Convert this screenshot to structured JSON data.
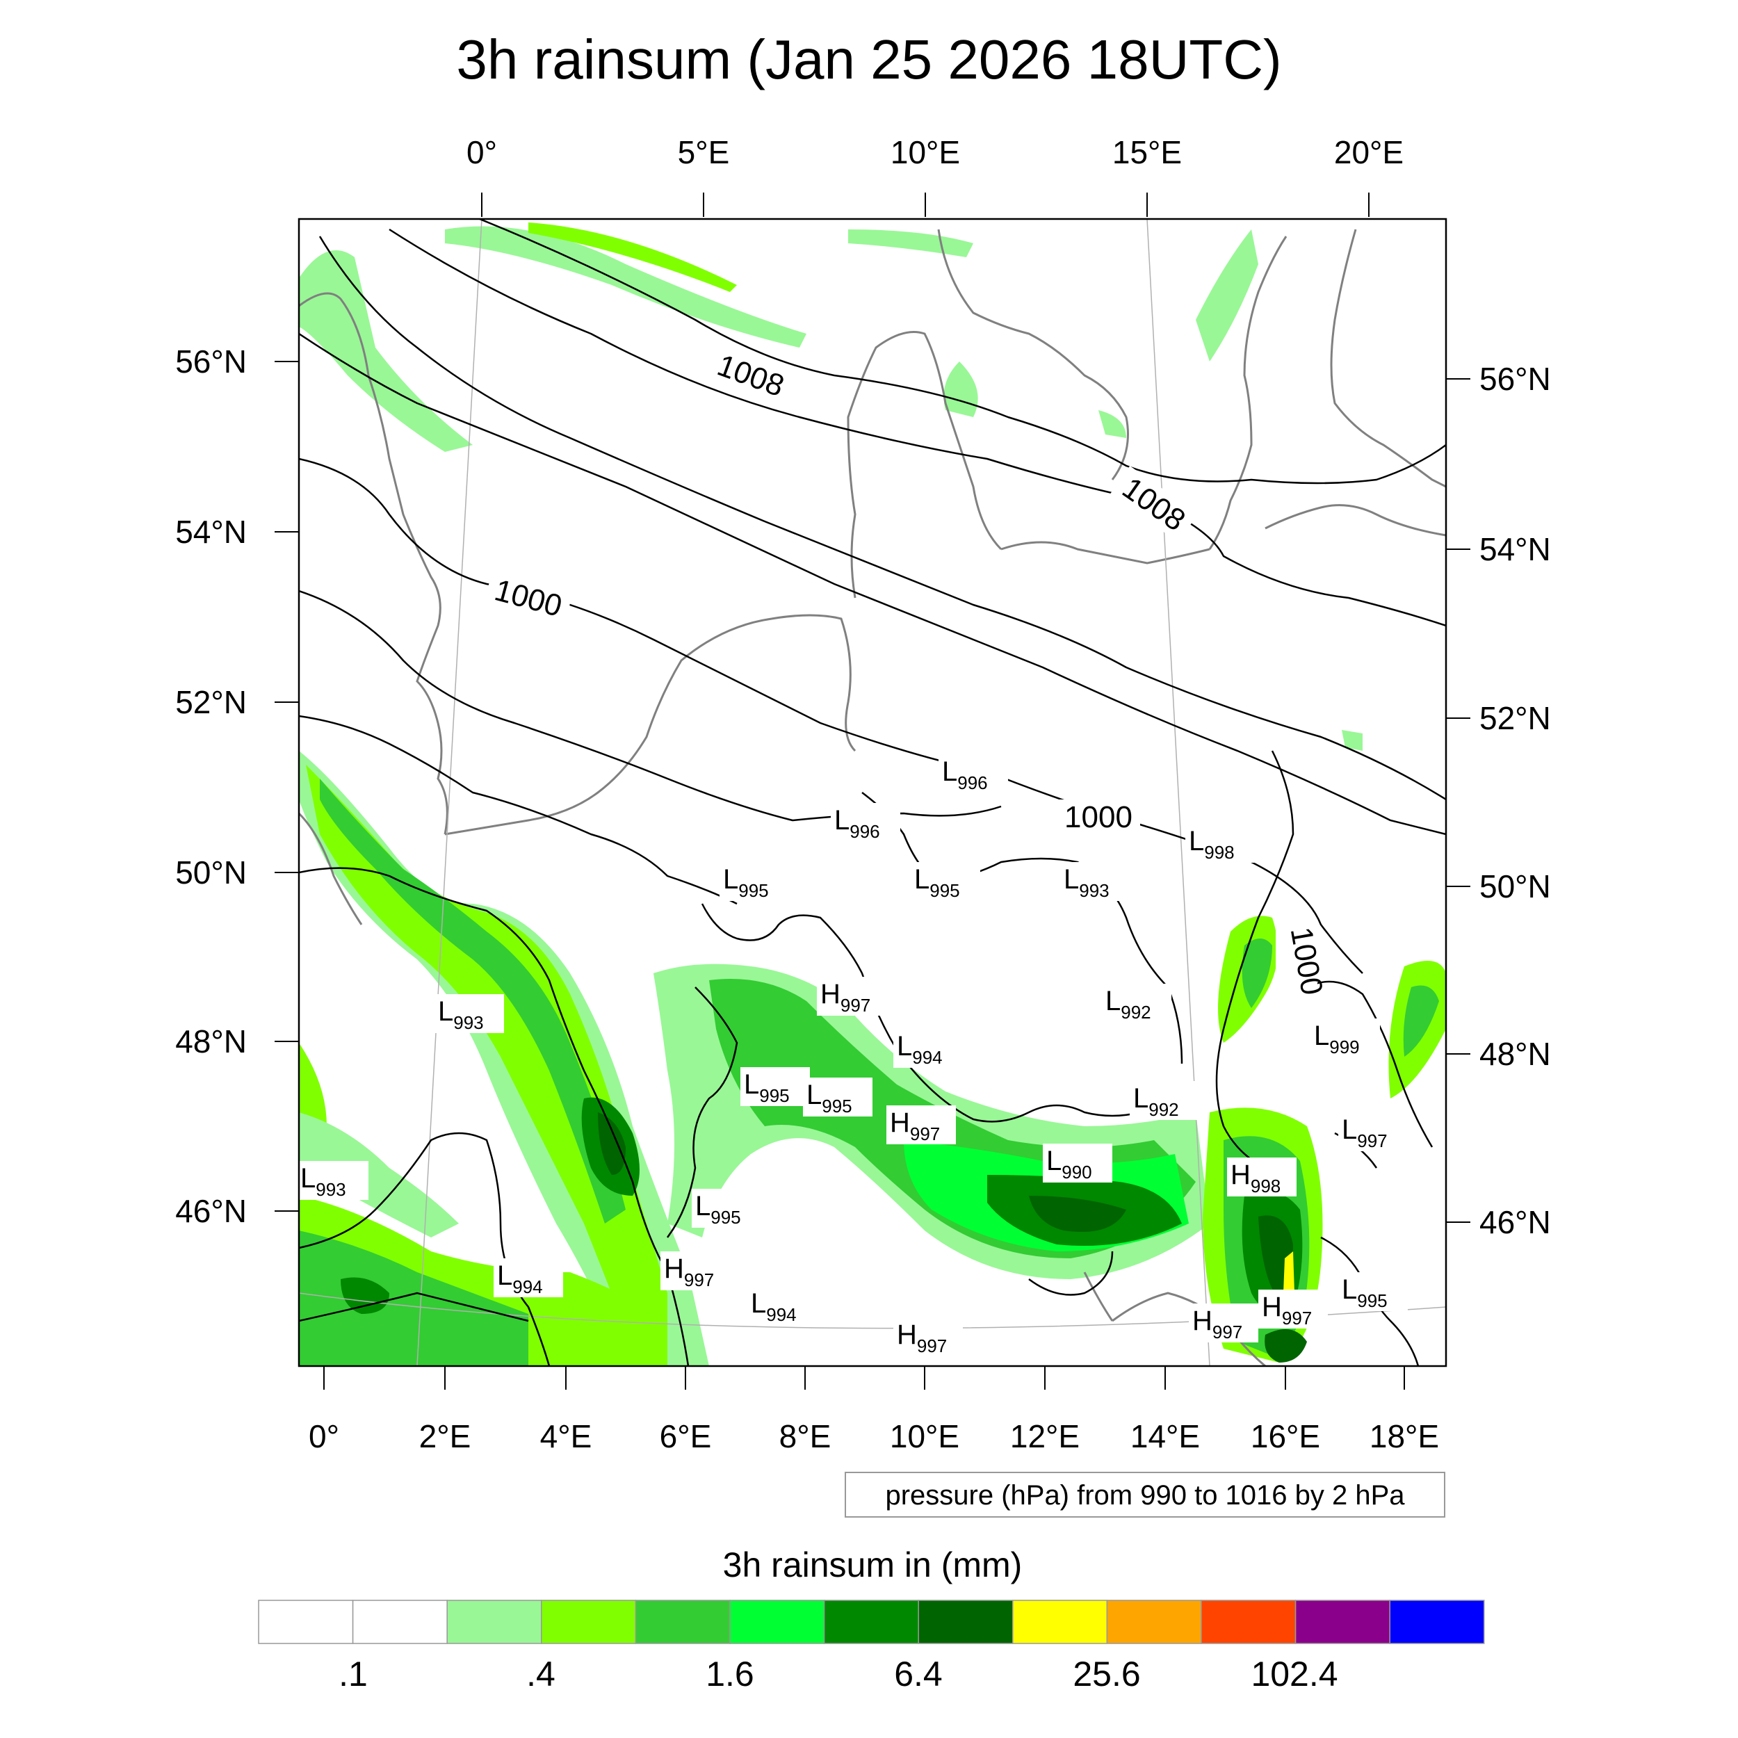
{
  "title": "3h rainsum (Jan 25 2026 18UTC)",
  "top_lon_labels": [
    "0°",
    "5°E",
    "10°E",
    "15°E",
    "20°E"
  ],
  "left_lat_labels": [
    "56°N",
    "54°N",
    "52°N",
    "50°N",
    "48°N",
    "46°N"
  ],
  "right_lat_labels": [
    "56°N",
    "54°N",
    "52°N",
    "50°N",
    "48°N",
    "46°N"
  ],
  "bottom_lon_labels": [
    "0°",
    "2°E",
    "4°E",
    "6°E",
    "8°E",
    "10°E",
    "12°E",
    "14°E",
    "16°E",
    "18°E"
  ],
  "contour_info": "pressure (hPa) from 990 to 1016 by 2 hPa",
  "contour_labels": [
    "1008",
    "1008",
    "1000",
    "1000",
    "1000"
  ],
  "pressure_centers": [
    {
      "type": "L",
      "value": "996"
    },
    {
      "type": "L",
      "value": "996"
    },
    {
      "type": "L",
      "value": "998"
    },
    {
      "type": "L",
      "value": "995"
    },
    {
      "type": "L",
      "value": "995"
    },
    {
      "type": "L",
      "value": "993"
    },
    {
      "type": "H",
      "value": "997"
    },
    {
      "type": "L",
      "value": "992"
    },
    {
      "type": "L",
      "value": "993"
    },
    {
      "type": "L",
      "value": "994"
    },
    {
      "type": "L",
      "value": "999"
    },
    {
      "type": "L",
      "value": "995"
    },
    {
      "type": "L",
      "value": "995"
    },
    {
      "type": "L",
      "value": "992"
    },
    {
      "type": "H",
      "value": "997"
    },
    {
      "type": "L",
      "value": "997"
    },
    {
      "type": "L",
      "value": "990"
    },
    {
      "type": "L",
      "value": "993"
    },
    {
      "type": "H",
      "value": "998"
    },
    {
      "type": "L",
      "value": "995"
    },
    {
      "type": "L",
      "value": "994"
    },
    {
      "type": "H",
      "value": "997"
    },
    {
      "type": "L",
      "value": "994"
    },
    {
      "type": "L",
      "value": "995"
    },
    {
      "type": "H",
      "value": "997"
    },
    {
      "type": "H",
      "value": "997"
    },
    {
      "type": "H",
      "value": "997"
    }
  ],
  "colorbar": {
    "title": "3h rainsum in (mm)",
    "labels": [
      ".1",
      ".4",
      "1.6",
      "6.4",
      "25.6",
      "102.4"
    ],
    "colors": [
      "#ffffff",
      "#ffffff",
      "#99f796",
      "#80ff00",
      "#33cc33",
      "#00ff33",
      "#008800",
      "#006400",
      "#ffff00",
      "#ffa500",
      "#ff4400",
      "#8b008b",
      "#0000ff"
    ]
  }
}
